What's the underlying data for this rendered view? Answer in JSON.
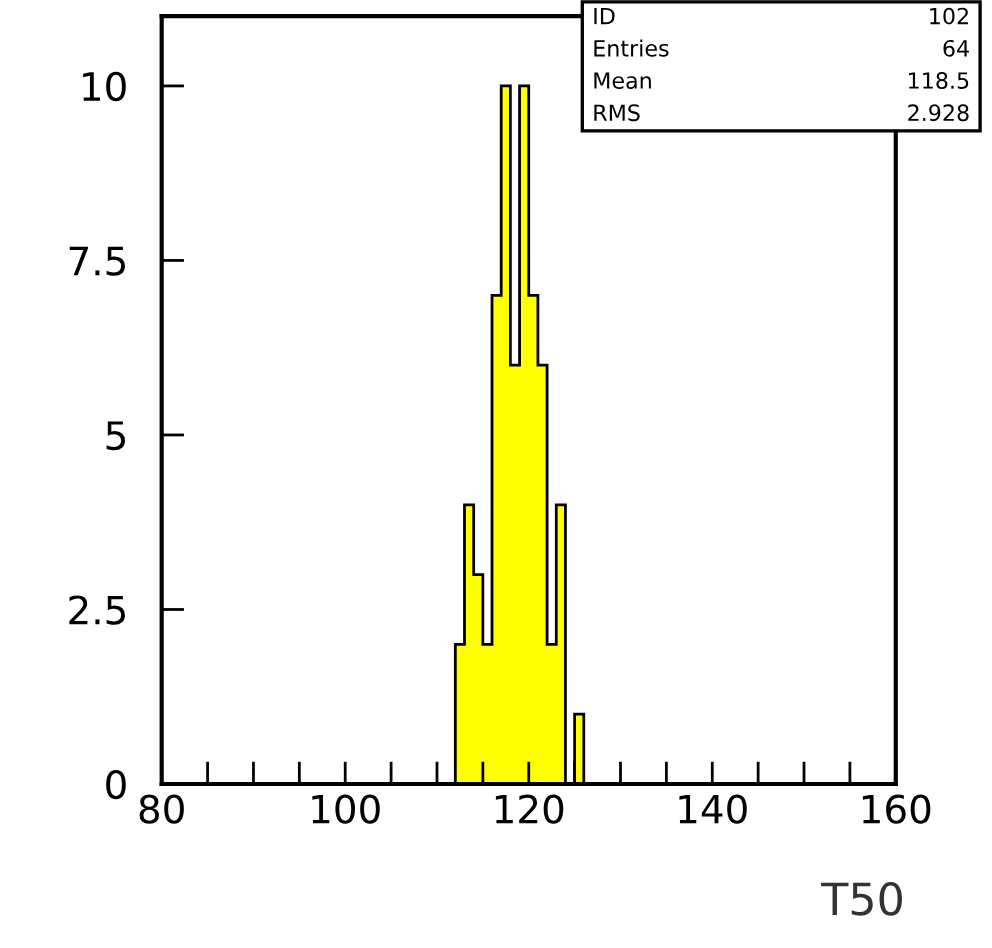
{
  "chart_data": {
    "type": "histogram",
    "xlabel": "T50",
    "bins": [
      112,
      113,
      114,
      115,
      116,
      117,
      118,
      119,
      120,
      121,
      122,
      123,
      124,
      125,
      126
    ],
    "values": [
      2,
      4,
      3,
      2,
      7,
      10,
      6,
      10,
      7,
      6,
      2,
      4,
      0,
      1
    ],
    "color": "#ffff00",
    "xlim": [
      80,
      160
    ],
    "ylim": [
      0,
      11
    ],
    "xticks": [
      80,
      {
        "value": 85,
        "label": null
      },
      {
        "value": 90,
        "label": null
      },
      {
        "value": 95,
        "label": null
      },
      100,
      {
        "value": 105,
        "label": null
      },
      {
        "value": 110,
        "label": null
      },
      {
        "value": 115,
        "label": null
      },
      120,
      {
        "value": 125,
        "label": null
      },
      {
        "value": 130,
        "label": null
      },
      {
        "value": 135,
        "label": null
      },
      140,
      {
        "value": 145,
        "label": null
      },
      {
        "value": 150,
        "label": null
      },
      {
        "value": 155,
        "label": null
      },
      160
    ],
    "yticks": [
      0,
      2.5,
      5,
      7.5,
      10
    ],
    "annotations": [
      "ID",
      "102",
      "Entries",
      "64",
      "Mean",
      "118.5",
      "RMS",
      "2.928"
    ],
    "grid": false
  }
}
